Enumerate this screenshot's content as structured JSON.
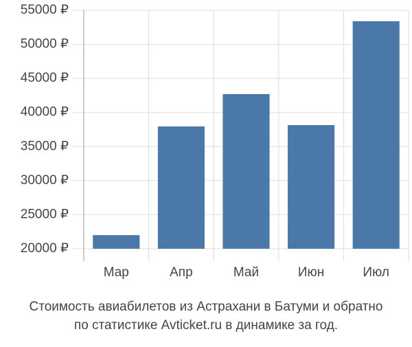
{
  "chart_data": {
    "type": "bar",
    "title": [
      "Стоимость авиабилетов из Астрахани в Батуми и обратно",
      "по статистике Avticket.ru в динамике за год."
    ],
    "categories": [
      "Мар",
      "Апр",
      "Май",
      "Июн",
      "Июл"
    ],
    "values": [
      22000,
      37950,
      42700,
      38150,
      53400
    ],
    "color": "#4a78a8",
    "ylim": [
      20000,
      55000
    ],
    "yticks": [
      {
        "value": 20000,
        "label": "20000 ₽"
      },
      {
        "value": 25000,
        "label": "25000 ₽"
      },
      {
        "value": 30000,
        "label": "30000 ₽"
      },
      {
        "value": 35000,
        "label": "35000 ₽"
      },
      {
        "value": 40000,
        "label": "40000 ₽"
      },
      {
        "value": 45000,
        "label": "45000 ₽"
      },
      {
        "value": 50000,
        "label": "50000 ₽"
      },
      {
        "value": 55000,
        "label": "55000 ₽"
      }
    ],
    "grid": true
  }
}
